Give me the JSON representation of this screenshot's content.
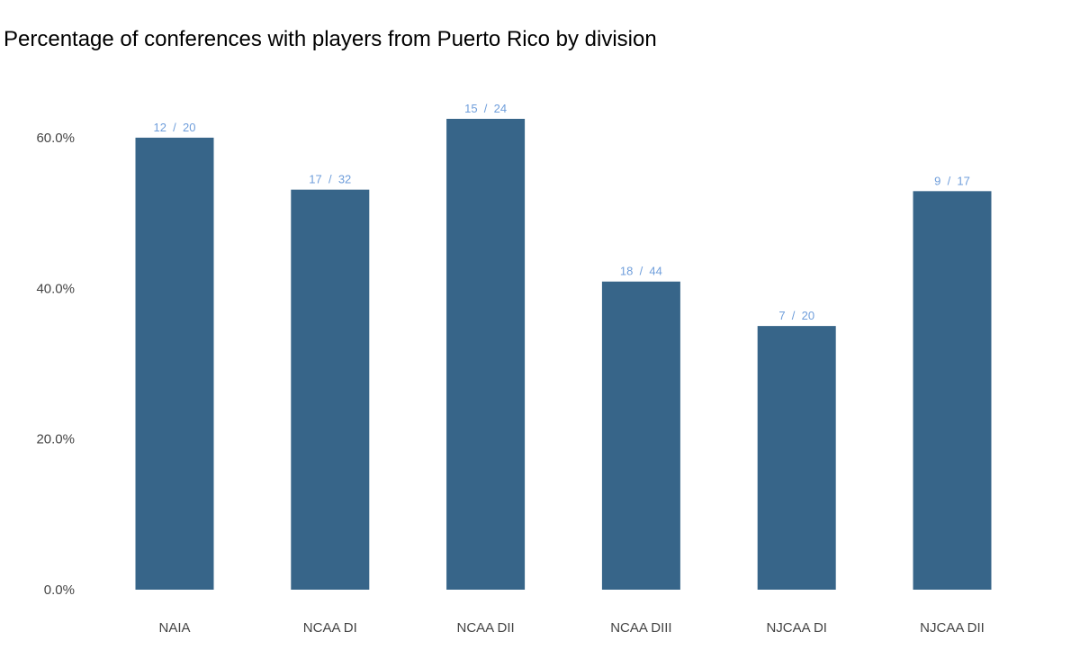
{
  "chart_data": {
    "type": "bar",
    "title": "Percentage of conferences with players from Puerto Rico by division",
    "xlabel": "",
    "ylabel": "",
    "categories": [
      "NAIA",
      "NCAA DI",
      "NCAA DII",
      "NCAA DIII",
      "NJCAA DI",
      "NJCAA DII"
    ],
    "values": [
      60.0,
      53.1,
      62.5,
      40.9,
      35.0,
      52.9
    ],
    "data_labels": [
      "12  /  20",
      "17  /  32",
      "15  /  24",
      "18  /  44",
      "7  /  20",
      "9  /  17"
    ],
    "ylim": [
      0,
      62.5
    ],
    "y_ticks": [
      0,
      20,
      40,
      60
    ],
    "y_tick_labels": [
      "0.0%",
      "20.0%",
      "40.0%",
      "60.0%"
    ],
    "grid": false,
    "legend": "none",
    "colors": {
      "bar": "#376589",
      "data_label": "#6f9edb",
      "tick_label": "#444444",
      "title": "#000000"
    }
  }
}
